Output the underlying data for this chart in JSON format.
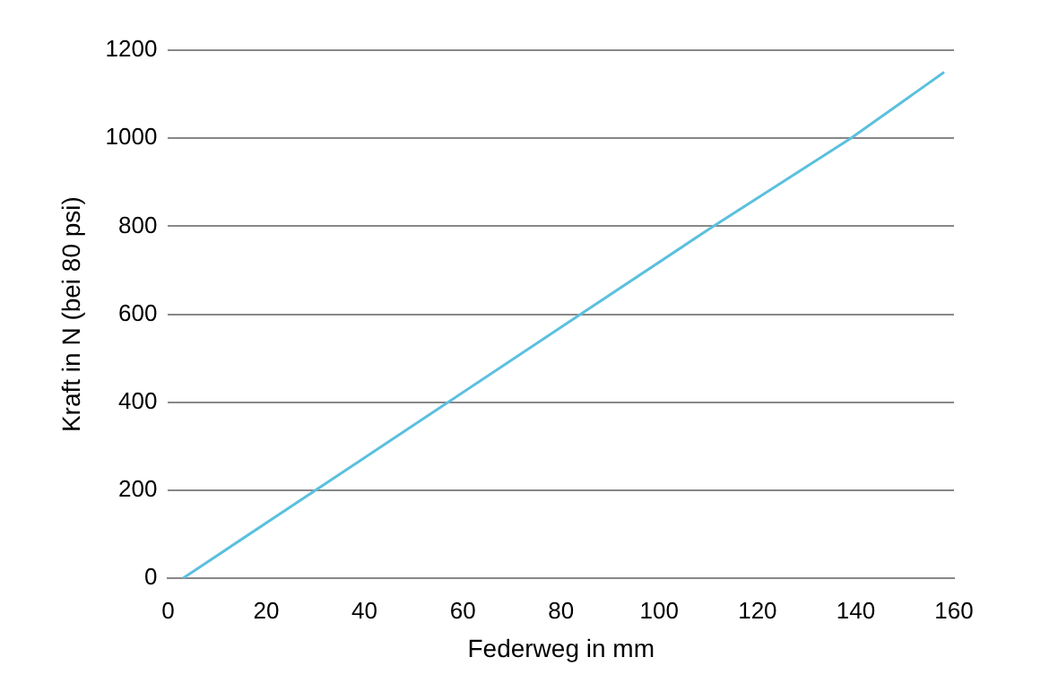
{
  "chart_data": {
    "type": "line",
    "xlabel": "Federweg in mm",
    "ylabel": "Kraft in N (bei 80 psi)",
    "series": [
      {
        "color": "#5bc0de",
        "x": [
          3,
          57,
          84,
          111,
          139,
          158
        ],
        "values": [
          0,
          400,
          600,
          800,
          1000,
          1150
        ]
      }
    ],
    "xlim": [
      0,
      160
    ],
    "xticks": [
      0,
      20,
      40,
      60,
      80,
      100,
      120,
      140,
      160
    ],
    "ylim": [
      0,
      1200
    ],
    "yticks": [
      0,
      200,
      400,
      600,
      800,
      1000,
      1200
    ],
    "grid": "y",
    "marker": "none",
    "line_style": "solid",
    "legend": false
  }
}
